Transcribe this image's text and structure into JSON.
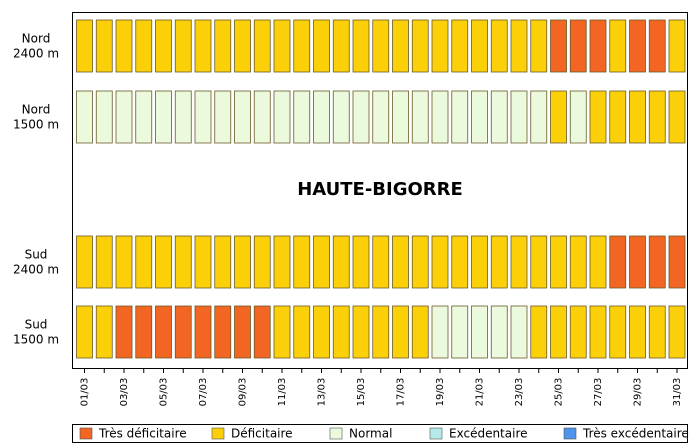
{
  "chart_data": {
    "type": "heatmap",
    "title": "HAUTE-BIGORRE",
    "categories": [
      "01/03",
      null,
      "03/03",
      null,
      "05/03",
      null,
      "07/03",
      null,
      "09/03",
      null,
      "11/03",
      null,
      "13/03",
      null,
      "15/03",
      null,
      "17/03",
      null,
      "19/03",
      null,
      "21/03",
      null,
      "23/03",
      null,
      "25/03",
      null,
      "27/03",
      null,
      "29/03",
      null,
      "31/03"
    ],
    "legend": [
      {
        "name": "Très déficitaire",
        "color": "#f26522"
      },
      {
        "name": "Déficitaire",
        "color": "#fcd008"
      },
      {
        "name": "Normal",
        "color": "#ebf9dd"
      },
      {
        "name": "Excédentaire",
        "color": "#b5eaea"
      },
      {
        "name": "Très excédentaire",
        "color": "#4f94ec"
      }
    ],
    "rows": [
      {
        "label": [
          "Nord",
          "2400 m"
        ],
        "values": [
          1,
          1,
          1,
          1,
          1,
          1,
          1,
          1,
          1,
          1,
          1,
          1,
          1,
          1,
          1,
          1,
          1,
          1,
          1,
          1,
          1,
          1,
          1,
          1,
          0,
          0,
          0,
          1,
          0,
          0,
          1
        ]
      },
      {
        "label": [
          "Nord",
          "1500 m"
        ],
        "values": [
          2,
          2,
          2,
          2,
          2,
          2,
          2,
          2,
          2,
          2,
          2,
          2,
          2,
          2,
          2,
          2,
          2,
          2,
          2,
          2,
          2,
          2,
          2,
          2,
          1,
          2,
          1,
          1,
          1,
          1,
          1
        ]
      },
      {
        "label": [
          "Sud",
          "2400 m"
        ],
        "values": [
          1,
          1,
          1,
          1,
          1,
          1,
          1,
          1,
          1,
          1,
          1,
          1,
          1,
          1,
          1,
          1,
          1,
          1,
          1,
          1,
          1,
          1,
          1,
          1,
          1,
          1,
          1,
          0,
          0,
          0,
          0
        ]
      },
      {
        "label": [
          "Sud",
          "1500 m"
        ],
        "values": [
          1,
          1,
          0,
          0,
          0,
          0,
          0,
          0,
          0,
          0,
          1,
          1,
          1,
          1,
          1,
          1,
          1,
          1,
          2,
          2,
          2,
          2,
          2,
          1,
          1,
          1,
          1,
          1,
          1,
          1,
          1
        ]
      }
    ]
  }
}
